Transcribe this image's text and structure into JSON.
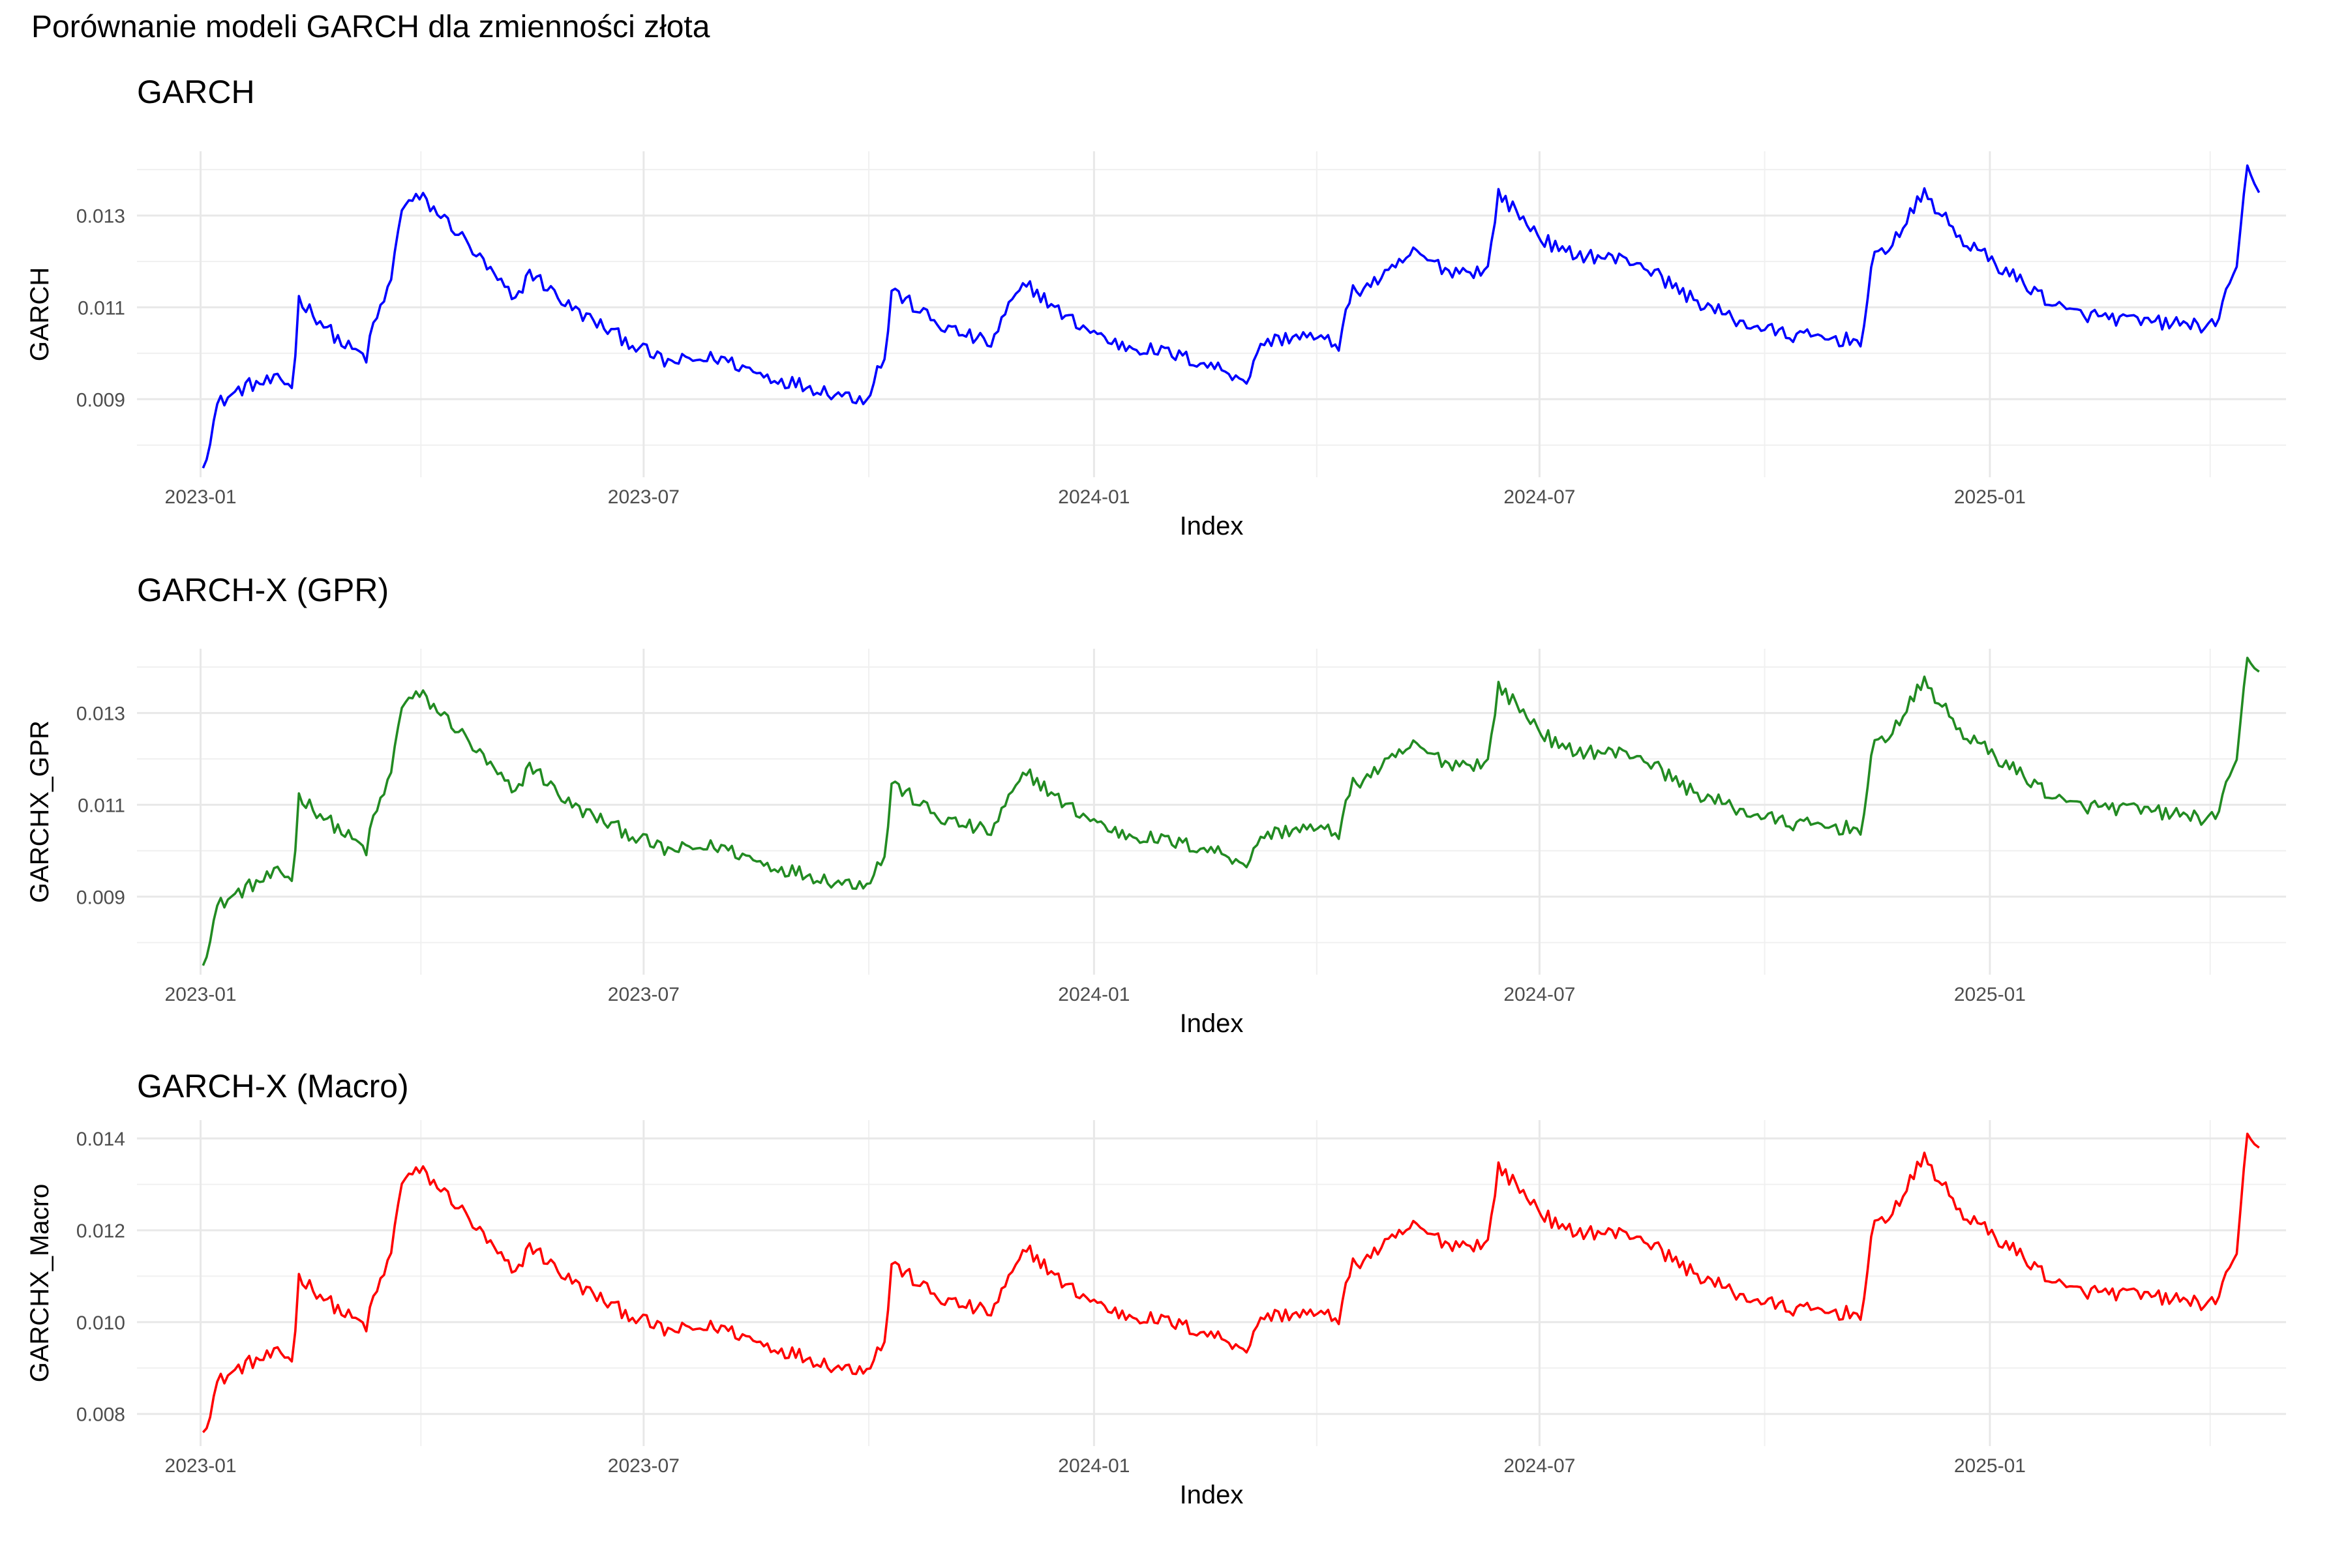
{
  "figure": {
    "title": "Porównanie modeli GARCH dla zmienności złota"
  },
  "chart_data": [
    {
      "type": "line",
      "title": "GARCH",
      "xlabel": "Index",
      "ylabel": "GARCH",
      "color": "#0000ff",
      "x_range": [
        "2022-12-06",
        "2025-05-02"
      ],
      "ylim": [
        0.0073,
        0.0144
      ],
      "x_ticks": [
        "2023-01",
        "2023-07",
        "2024-01",
        "2024-07",
        "2025-01"
      ],
      "y_ticks": [
        0.009,
        0.011,
        0.013
      ],
      "grid": true,
      "keypoints": [
        [
          "2023-01-02",
          0.0075
        ],
        [
          "2023-01-05",
          0.0082
        ],
        [
          "2023-01-08",
          0.0089
        ],
        [
          "2023-01-20",
          0.0093
        ],
        [
          "2023-02-01",
          0.0094
        ],
        [
          "2023-02-08",
          0.0093
        ],
        [
          "2023-02-10",
          0.0112
        ],
        [
          "2023-02-28",
          0.0102
        ],
        [
          "2023-03-10",
          0.0099
        ],
        [
          "2023-03-12",
          0.0105
        ],
        [
          "2023-03-20",
          0.0116
        ],
        [
          "2023-03-24",
          0.0132
        ],
        [
          "2023-04-01",
          0.0134
        ],
        [
          "2023-04-15",
          0.0127
        ],
        [
          "2023-05-10",
          0.0111
        ],
        [
          "2023-05-15",
          0.0118
        ],
        [
          "2023-06-01",
          0.011
        ],
        [
          "2023-06-20",
          0.0104
        ],
        [
          "2023-07-10",
          0.0098
        ],
        [
          "2023-08-01",
          0.0099
        ],
        [
          "2023-08-20",
          0.0095
        ],
        [
          "2023-09-20",
          0.0091
        ],
        [
          "2023-09-30",
          0.009
        ],
        [
          "2023-10-05",
          0.0097
        ],
        [
          "2023-10-08",
          0.0099
        ],
        [
          "2023-10-10",
          0.0114
        ],
        [
          "2023-10-30",
          0.0106
        ],
        [
          "2023-11-20",
          0.0102
        ],
        [
          "2023-11-28",
          0.0111
        ],
        [
          "2023-12-05",
          0.0115
        ],
        [
          "2023-12-20",
          0.0108
        ],
        [
          "2024-01-10",
          0.0102
        ],
        [
          "2024-02-01",
          0.01
        ],
        [
          "2024-02-20",
          0.0097
        ],
        [
          "2024-03-05",
          0.0094
        ],
        [
          "2024-03-08",
          0.0102
        ],
        [
          "2024-03-25",
          0.0104
        ],
        [
          "2024-04-10",
          0.0102
        ],
        [
          "2024-04-15",
          0.0113
        ],
        [
          "2024-04-30",
          0.0117
        ],
        [
          "2024-05-10",
          0.0122
        ],
        [
          "2024-05-25",
          0.0118
        ],
        [
          "2024-06-10",
          0.0118
        ],
        [
          "2024-06-14",
          0.0135
        ],
        [
          "2024-06-30",
          0.0126
        ],
        [
          "2024-07-10",
          0.0122
        ],
        [
          "2024-08-10",
          0.012
        ],
        [
          "2024-09-01",
          0.0112
        ],
        [
          "2024-09-20",
          0.0107
        ],
        [
          "2024-10-10",
          0.0104
        ],
        [
          "2024-11-01",
          0.0103
        ],
        [
          "2024-11-10",
          0.0103
        ],
        [
          "2024-11-14",
          0.012
        ],
        [
          "2024-11-25",
          0.0126
        ],
        [
          "2024-12-05",
          0.0135
        ],
        [
          "2024-12-20",
          0.0125
        ],
        [
          "2025-01-10",
          0.0117
        ],
        [
          "2025-02-01",
          0.0109
        ],
        [
          "2025-03-01",
          0.0107
        ],
        [
          "2025-04-01",
          0.0106
        ],
        [
          "2025-04-05",
          0.0106
        ],
        [
          "2025-04-07",
          0.0115
        ],
        [
          "2025-04-12",
          0.0118
        ],
        [
          "2025-04-16",
          0.014
        ],
        [
          "2025-04-21",
          0.0135
        ]
      ]
    },
    {
      "type": "line",
      "title": "GARCH-X (GPR)",
      "xlabel": "Index",
      "ylabel": "GARCHX_GPR",
      "color": "#228b22",
      "x_range": [
        "2022-12-06",
        "2025-05-02"
      ],
      "ylim": [
        0.0073,
        0.0144
      ],
      "x_ticks": [
        "2023-01",
        "2023-07",
        "2024-01",
        "2024-07",
        "2025-01"
      ],
      "y_ticks": [
        0.009,
        0.011,
        0.013
      ],
      "grid": true,
      "keypoints": [
        [
          "2023-01-02",
          0.0075
        ],
        [
          "2023-01-05",
          0.0082
        ],
        [
          "2023-01-08",
          0.0088
        ],
        [
          "2023-01-20",
          0.0092
        ],
        [
          "2023-02-01",
          0.0095
        ],
        [
          "2023-02-08",
          0.0094
        ],
        [
          "2023-02-10",
          0.0112
        ],
        [
          "2023-02-28",
          0.0104
        ],
        [
          "2023-03-10",
          0.01
        ],
        [
          "2023-03-12",
          0.0106
        ],
        [
          "2023-03-20",
          0.0117
        ],
        [
          "2023-03-24",
          0.0132
        ],
        [
          "2023-04-01",
          0.0134
        ],
        [
          "2023-04-15",
          0.0127
        ],
        [
          "2023-05-10",
          0.0112
        ],
        [
          "2023-05-15",
          0.0119
        ],
        [
          "2023-06-01",
          0.011
        ],
        [
          "2023-06-20",
          0.0105
        ],
        [
          "2023-07-10",
          0.01
        ],
        [
          "2023-08-01",
          0.0101
        ],
        [
          "2023-08-20",
          0.0097
        ],
        [
          "2023-09-20",
          0.0093
        ],
        [
          "2023-09-30",
          0.0093
        ],
        [
          "2023-10-05",
          0.0097
        ],
        [
          "2023-10-08",
          0.0099
        ],
        [
          "2023-10-10",
          0.0115
        ],
        [
          "2023-10-30",
          0.0107
        ],
        [
          "2023-11-20",
          0.0104
        ],
        [
          "2023-11-28",
          0.0112
        ],
        [
          "2023-12-05",
          0.0117
        ],
        [
          "2023-12-20",
          0.011
        ],
        [
          "2024-01-10",
          0.0104
        ],
        [
          "2024-02-01",
          0.0102
        ],
        [
          "2024-02-20",
          0.01
        ],
        [
          "2024-03-05",
          0.0097
        ],
        [
          "2024-03-08",
          0.0103
        ],
        [
          "2024-03-25",
          0.0105
        ],
        [
          "2024-04-10",
          0.0104
        ],
        [
          "2024-04-15",
          0.0114
        ],
        [
          "2024-04-30",
          0.0119
        ],
        [
          "2024-05-10",
          0.0123
        ],
        [
          "2024-05-25",
          0.0119
        ],
        [
          "2024-06-10",
          0.0119
        ],
        [
          "2024-06-14",
          0.0136
        ],
        [
          "2024-06-30",
          0.0127
        ],
        [
          "2024-07-10",
          0.0122
        ],
        [
          "2024-08-10",
          0.0121
        ],
        [
          "2024-09-01",
          0.0113
        ],
        [
          "2024-09-20",
          0.0109
        ],
        [
          "2024-10-10",
          0.0106
        ],
        [
          "2024-11-01",
          0.0105
        ],
        [
          "2024-11-10",
          0.0105
        ],
        [
          "2024-11-14",
          0.0122
        ],
        [
          "2024-11-25",
          0.0128
        ],
        [
          "2024-12-05",
          0.0137
        ],
        [
          "2024-12-20",
          0.0126
        ],
        [
          "2025-01-10",
          0.0118
        ],
        [
          "2025-02-01",
          0.011
        ],
        [
          "2025-03-01",
          0.0109
        ],
        [
          "2025-04-01",
          0.0107
        ],
        [
          "2025-04-05",
          0.0107
        ],
        [
          "2025-04-07",
          0.0116
        ],
        [
          "2025-04-12",
          0.0119
        ],
        [
          "2025-04-16",
          0.0141
        ],
        [
          "2025-04-21",
          0.0139
        ]
      ]
    },
    {
      "type": "line",
      "title": "GARCH-X (Macro)",
      "xlabel": "Index",
      "ylabel": "GARCHX_Macro",
      "color": "#ff0000",
      "x_range": [
        "2022-12-06",
        "2025-05-02"
      ],
      "ylim": [
        0.0073,
        0.0144
      ],
      "x_ticks": [
        "2023-01",
        "2023-07",
        "2024-01",
        "2024-07",
        "2025-01"
      ],
      "y_ticks": [
        0.008,
        0.01,
        0.012,
        0.014
      ],
      "grid": true,
      "keypoints": [
        [
          "2023-01-02",
          0.0076
        ],
        [
          "2023-01-05",
          0.0081
        ],
        [
          "2023-01-08",
          0.0087
        ],
        [
          "2023-01-20",
          0.0091
        ],
        [
          "2023-02-01",
          0.0093
        ],
        [
          "2023-02-08",
          0.0092
        ],
        [
          "2023-02-10",
          0.011
        ],
        [
          "2023-02-28",
          0.0102
        ],
        [
          "2023-03-10",
          0.0099
        ],
        [
          "2023-03-12",
          0.0104
        ],
        [
          "2023-03-20",
          0.0115
        ],
        [
          "2023-03-24",
          0.0131
        ],
        [
          "2023-04-01",
          0.0133
        ],
        [
          "2023-04-15",
          0.0126
        ],
        [
          "2023-05-10",
          0.011
        ],
        [
          "2023-05-15",
          0.0117
        ],
        [
          "2023-06-01",
          0.0109
        ],
        [
          "2023-06-20",
          0.0103
        ],
        [
          "2023-07-10",
          0.0098
        ],
        [
          "2023-08-01",
          0.0099
        ],
        [
          "2023-08-20",
          0.0095
        ],
        [
          "2023-09-20",
          0.009
        ],
        [
          "2023-09-30",
          0.009
        ],
        [
          "2023-10-05",
          0.0094
        ],
        [
          "2023-10-08",
          0.0096
        ],
        [
          "2023-10-10",
          0.0113
        ],
        [
          "2023-10-30",
          0.0105
        ],
        [
          "2023-11-20",
          0.0102
        ],
        [
          "2023-11-28",
          0.011
        ],
        [
          "2023-12-05",
          0.0116
        ],
        [
          "2023-12-20",
          0.0108
        ],
        [
          "2024-01-10",
          0.0102
        ],
        [
          "2024-02-01",
          0.01
        ],
        [
          "2024-02-20",
          0.0097
        ],
        [
          "2024-03-05",
          0.0094
        ],
        [
          "2024-03-08",
          0.0101
        ],
        [
          "2024-03-25",
          0.0102
        ],
        [
          "2024-04-10",
          0.0101
        ],
        [
          "2024-04-15",
          0.0112
        ],
        [
          "2024-04-30",
          0.0117
        ],
        [
          "2024-05-10",
          0.0121
        ],
        [
          "2024-05-25",
          0.0117
        ],
        [
          "2024-06-10",
          0.0117
        ],
        [
          "2024-06-14",
          0.0134
        ],
        [
          "2024-06-30",
          0.0125
        ],
        [
          "2024-07-10",
          0.012
        ],
        [
          "2024-08-10",
          0.0119
        ],
        [
          "2024-09-01",
          0.0111
        ],
        [
          "2024-09-20",
          0.0106
        ],
        [
          "2024-10-10",
          0.0103
        ],
        [
          "2024-11-01",
          0.0102
        ],
        [
          "2024-11-10",
          0.0102
        ],
        [
          "2024-11-14",
          0.012
        ],
        [
          "2024-11-25",
          0.0126
        ],
        [
          "2024-12-05",
          0.0136
        ],
        [
          "2024-12-20",
          0.0124
        ],
        [
          "2025-01-10",
          0.0116
        ],
        [
          "2025-02-01",
          0.0107
        ],
        [
          "2025-03-01",
          0.0106
        ],
        [
          "2025-04-01",
          0.0104
        ],
        [
          "2025-04-05",
          0.0104
        ],
        [
          "2025-04-07",
          0.0112
        ],
        [
          "2025-04-12",
          0.0114
        ],
        [
          "2025-04-16",
          0.014
        ],
        [
          "2025-04-21",
          0.0138
        ]
      ]
    }
  ]
}
